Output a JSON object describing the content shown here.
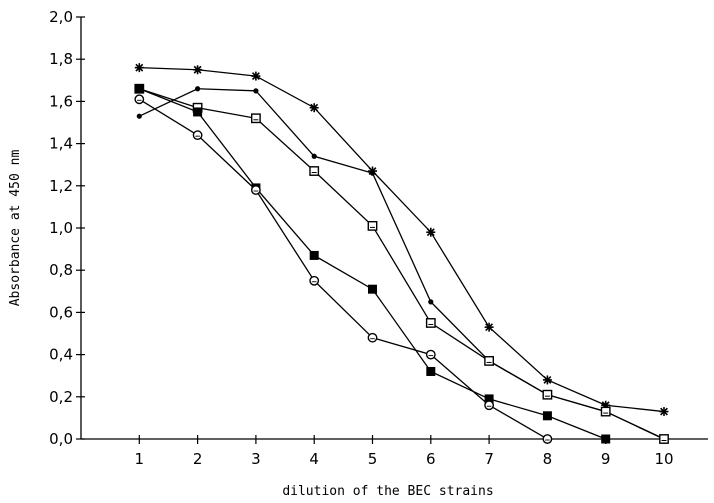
{
  "chart_data": {
    "type": "line",
    "title": "",
    "xlabel": "dilution of the BEC strains",
    "ylabel": "Absorbance at 450 nm",
    "x": [
      1,
      2,
      3,
      4,
      5,
      6,
      7,
      8,
      9,
      10
    ],
    "xlim": [
      0,
      11
    ],
    "ylim": [
      0,
      2.0
    ],
    "xticks": [
      "1",
      "2",
      "3",
      "4",
      "5",
      "6",
      "7",
      "8",
      "9",
      "10"
    ],
    "yticks": [
      "0,0",
      "0,2",
      "0,4",
      "0,6",
      "0,8",
      "1,0",
      "1,2",
      "1,4",
      "1,6",
      "1,8",
      "2,0"
    ],
    "grid": false,
    "legend": "none",
    "series": [
      {
        "marker": "asterisk",
        "values": [
          1.76,
          1.75,
          1.72,
          1.57,
          1.27,
          0.98,
          0.53,
          0.28,
          0.16,
          0.13
        ]
      },
      {
        "marker": "dot",
        "values": [
          1.53,
          1.66,
          1.65,
          1.34,
          1.26,
          0.65,
          0.37,
          0.21,
          0.13,
          0.0
        ]
      },
      {
        "marker": "open-square",
        "values": [
          1.66,
          1.57,
          1.52,
          1.27,
          1.01,
          0.55,
          0.37,
          0.21,
          0.13,
          0.0
        ]
      },
      {
        "marker": "filled-square",
        "values": [
          1.66,
          1.55,
          1.19,
          0.87,
          0.71,
          0.32,
          0.19,
          0.11,
          0.0,
          null
        ]
      },
      {
        "marker": "open-circle",
        "values": [
          1.61,
          1.44,
          1.18,
          0.75,
          0.48,
          0.4,
          0.16,
          0.0,
          null,
          null
        ]
      }
    ]
  }
}
